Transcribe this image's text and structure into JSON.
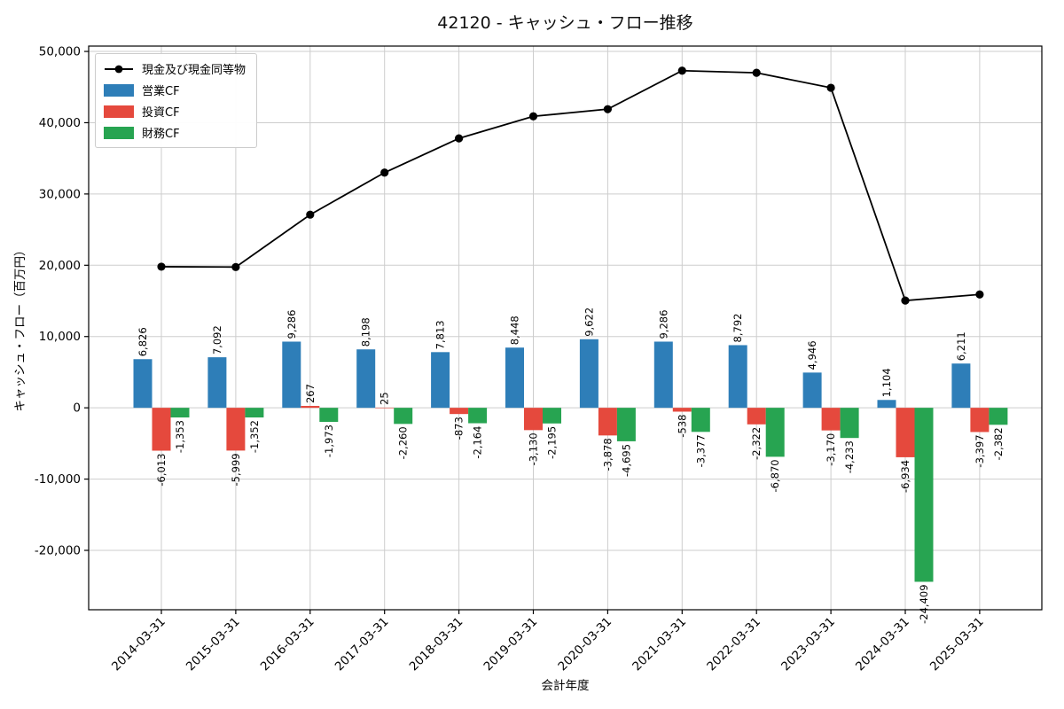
{
  "chart_data": {
    "type": "bar",
    "title": "42120 - キャッシュ・フロー推移",
    "xlabel": "会計年度",
    "ylabel": "キャッシュ・フロー（百万円）",
    "categories": [
      "2014-03-31",
      "2015-03-31",
      "2016-03-31",
      "2017-03-31",
      "2018-03-31",
      "2019-03-31",
      "2020-03-31",
      "2021-03-31",
      "2022-03-31",
      "2023-03-31",
      "2024-03-31",
      "2025-03-31"
    ],
    "series": [
      {
        "key": "operating-cf",
        "name": "営業CF",
        "color": "#2e7eb8",
        "values": [
          6826,
          7092,
          9286,
          8198,
          7813,
          8448,
          9622,
          9286,
          8792,
          4946,
          1104,
          6211
        ],
        "labels": [
          "6,826",
          "7,092",
          "9,286",
          "8,198",
          "7,813",
          "8,448",
          "9,622",
          "9,286",
          "8,792",
          "4,946",
          "1,104",
          "6,211"
        ]
      },
      {
        "key": "investing-cf",
        "name": "投資CF",
        "color": "#e5493d",
        "values": [
          -6013,
          -5999,
          267,
          25,
          -873,
          -3130,
          -3878,
          -538,
          -2322,
          -3170,
          -6934,
          -3397
        ],
        "labels": [
          "-6,013",
          "-5,999",
          "267",
          "25",
          "-873",
          "-3,130",
          "-3,878",
          "-538",
          "-2,322",
          "-3,170",
          "-6,934",
          "-3,397"
        ]
      },
      {
        "key": "financing-cf",
        "name": "財務CF",
        "color": "#27a451",
        "values": [
          -1353,
          -1352,
          -1973,
          -2260,
          -2164,
          -2195,
          -4695,
          -3377,
          -6870,
          -4233,
          -24409,
          -2382
        ],
        "labels": [
          "-1,353",
          "-1,352",
          "-1,973",
          "-2,260",
          "-2,164",
          "-2,195",
          "-4,695",
          "-3,377",
          "-6,870",
          "-4,233",
          "-24,409",
          "-2,382"
        ]
      }
    ],
    "line_series": {
      "key": "cash-and-equivalents",
      "name": "現金及び現金同等物",
      "color": "#000000",
      "values": [
        19800,
        19750,
        27100,
        33000,
        37800,
        40900,
        41900,
        47300,
        47000,
        44900,
        15050,
        15900
      ]
    },
    "yticks": {
      "values": [
        50000,
        40000,
        30000,
        20000,
        10000,
        0,
        -10000,
        -20000
      ],
      "labels": [
        "50,000",
        "40,000",
        "30,000",
        "20,000",
        "10,000",
        "0",
        "-10,000",
        "-20,000"
      ]
    },
    "ylim": [
      -28330,
      50750
    ],
    "grid": true,
    "legend_position": "upper left"
  }
}
